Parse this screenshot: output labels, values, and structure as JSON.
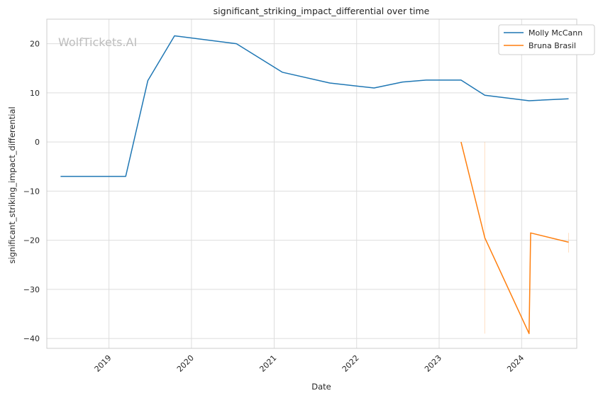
{
  "chart_data": {
    "type": "line",
    "title": "significant_striking_impact_differential over time",
    "xlabel": "Date",
    "ylabel": "significant_striking_impact_differential",
    "watermark": "WolfTickets.AI",
    "xlim": [
      "2018-04-01",
      "2024-09-01"
    ],
    "ylim": [
      -42,
      25
    ],
    "x_ticks": [
      "2019-01-01",
      "2020-01-01",
      "2021-01-01",
      "2022-01-01",
      "2023-01-01",
      "2024-01-01"
    ],
    "x_tick_labels": [
      "2019",
      "2020",
      "2021",
      "2022",
      "2023",
      "2024"
    ],
    "y_ticks": [
      -40,
      -30,
      -20,
      -10,
      0,
      10,
      20
    ],
    "y_tick_labels": [
      "−40",
      "−30",
      "−20",
      "−10",
      "0",
      "10",
      "20"
    ],
    "grid": true,
    "legend_position": "top-right",
    "series": [
      {
        "name": "Molly McCann",
        "color": "#1f77b4",
        "x": [
          "2018-06-01",
          "2019-03-16",
          "2019-06-22",
          "2019-10-18",
          "2020-07-18",
          "2021-02-06",
          "2021-09-04",
          "2022-03-19",
          "2022-07-23",
          "2022-11-05",
          "2023-04-08",
          "2023-07-22",
          "2024-02-03",
          "2024-07-27"
        ],
        "y": [
          -7,
          -7,
          12.5,
          21.6,
          20,
          14.2,
          12,
          11,
          12.2,
          12.6,
          12.6,
          9.5,
          8.4,
          8.8
        ]
      },
      {
        "name": "Bruna Brasil",
        "color": "#ff7f0e",
        "x": [
          "2023-04-08",
          "2023-07-22",
          "2024-02-03",
          "2024-02-10",
          "2024-07-27"
        ],
        "y": [
          0,
          -19.5,
          -39,
          -18.5,
          -20.4
        ]
      }
    ]
  }
}
